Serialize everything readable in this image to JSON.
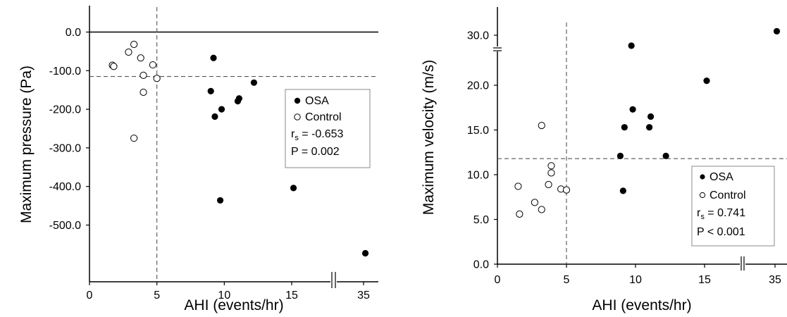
{
  "chart_data": [
    {
      "type": "scatter",
      "xlabel": "AHI (events/hr)",
      "ylabel": "Maximum pressure (Pa)",
      "x_tick_labels": [
        "0",
        "5",
        "10",
        "15",
        "35"
      ],
      "y_tick_labels": [
        "0.0",
        "-100.0",
        "-200.0",
        "-300.0",
        "-400.0",
        "-500.0"
      ],
      "ylim": [
        -580,
        40
      ],
      "x_axis_break": true,
      "reference_lines": {
        "vertical_x": 5,
        "horizontal_y": -115
      },
      "series": [
        {
          "name": "OSA",
          "marker": "filled-circle",
          "points": [
            {
              "x": 9.2,
              "y": -67
            },
            {
              "x": 9.0,
              "y": -153
            },
            {
              "x": 9.3,
              "y": -219
            },
            {
              "x": 9.8,
              "y": -200
            },
            {
              "x": 9.7,
              "y": -436
            },
            {
              "x": 11.0,
              "y": -179
            },
            {
              "x": 11.1,
              "y": -172
            },
            {
              "x": 12.2,
              "y": -131
            },
            {
              "x": 15.5,
              "y": -404
            },
            {
              "x": 35.5,
              "y": -573
            }
          ]
        },
        {
          "name": "Control",
          "marker": "open-circle",
          "points": [
            {
              "x": 1.7,
              "y": -86
            },
            {
              "x": 1.8,
              "y": -89
            },
            {
              "x": 2.9,
              "y": -52
            },
            {
              "x": 3.3,
              "y": -32
            },
            {
              "x": 3.8,
              "y": -67
            },
            {
              "x": 4.0,
              "y": -112
            },
            {
              "x": 4.0,
              "y": -156
            },
            {
              "x": 4.7,
              "y": -85
            },
            {
              "x": 5.0,
              "y": -120
            },
            {
              "x": 3.3,
              "y": -275
            }
          ]
        }
      ],
      "legend": {
        "position": "right",
        "items": [
          "OSA",
          "Control"
        ],
        "stat_label": "r",
        "stat_subscript": "s",
        "stat_value": " = -0.653",
        "p_text": "P =  0.002"
      }
    },
    {
      "type": "scatter",
      "xlabel": "AHI (events/hr)",
      "ylabel": "Maximum velocity (m/s)",
      "x_tick_labels": [
        "0",
        "5",
        "10",
        "15",
        "35"
      ],
      "y_tick_labels": [
        "0.0",
        "5.0",
        "10.0",
        "15.0",
        "20.0",
        "30.0"
      ],
      "ylim": [
        0,
        26
      ],
      "y_axis_break": true,
      "x_axis_break": true,
      "reference_lines": {
        "vertical_x": 5,
        "horizontal_y": 11.8
      },
      "series": [
        {
          "name": "OSA",
          "marker": "filled-circle",
          "points": [
            {
              "x": 9.7,
              "y": 27.9
            },
            {
              "x": 9.8,
              "y": 17.3
            },
            {
              "x": 9.2,
              "y": 15.3
            },
            {
              "x": 11.1,
              "y": 16.5
            },
            {
              "x": 11.0,
              "y": 15.3
            },
            {
              "x": 8.9,
              "y": 12.1
            },
            {
              "x": 12.2,
              "y": 12.1
            },
            {
              "x": 9.1,
              "y": 8.2
            },
            {
              "x": 15.6,
              "y": 20.9
            },
            {
              "x": 35.5,
              "y": 30.8
            }
          ]
        },
        {
          "name": "Control",
          "marker": "open-circle",
          "points": [
            {
              "x": 3.2,
              "y": 15.5
            },
            {
              "x": 3.9,
              "y": 11.0
            },
            {
              "x": 3.9,
              "y": 10.2
            },
            {
              "x": 3.7,
              "y": 8.9
            },
            {
              "x": 4.6,
              "y": 8.4
            },
            {
              "x": 5.0,
              "y": 8.3
            },
            {
              "x": 1.5,
              "y": 8.7
            },
            {
              "x": 2.7,
              "y": 6.9
            },
            {
              "x": 3.2,
              "y": 6.1
            },
            {
              "x": 1.6,
              "y": 5.6
            }
          ]
        }
      ],
      "legend": {
        "position": "bottom-right",
        "items": [
          "OSA",
          "Control"
        ],
        "stat_label": "r",
        "stat_subscript": "s",
        "stat_value": " = 0.741",
        "p_text": "P < 0.001"
      }
    }
  ]
}
